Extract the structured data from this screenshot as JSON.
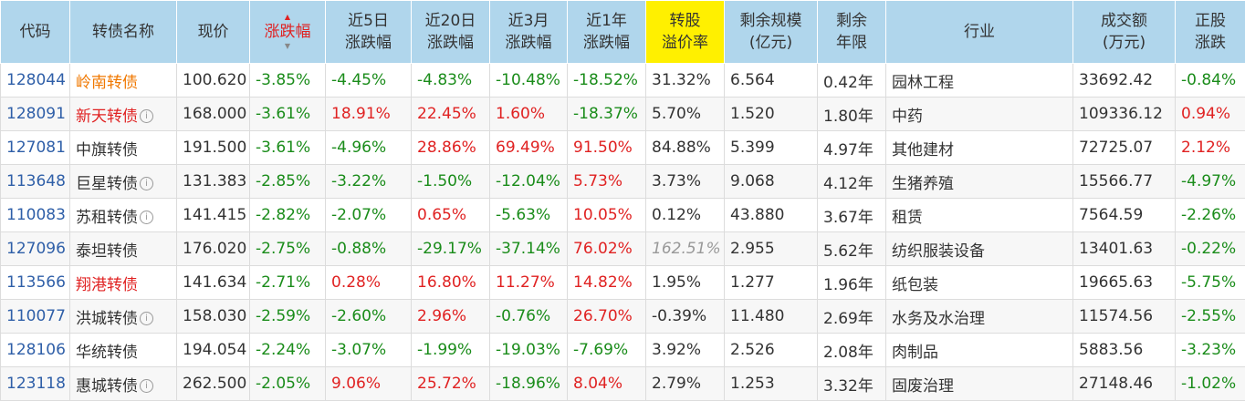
{
  "header": {
    "code": "代码",
    "name": "转债名称",
    "price": "现价",
    "change": "涨跌幅",
    "chg5d_1": "近5日",
    "chg5d_2": "涨跌幅",
    "chg20d_1": "近20日",
    "chg20d_2": "涨跌幅",
    "chg3m_1": "近3月",
    "chg3m_2": "涨跌幅",
    "chg1y_1": "近1年",
    "chg1y_2": "涨跌幅",
    "premium_1": "转股",
    "premium_2": "溢价率",
    "size_1": "剩余规模",
    "size_2": "(亿元)",
    "term_1": "剩余",
    "term_2": "年限",
    "industry": "行业",
    "volume_1": "成交额",
    "volume_2": "(万元)",
    "stock_1": "正股",
    "stock_2": "涨跌"
  },
  "colors": {
    "up": "#e02222",
    "down": "#1a8c1a",
    "header_bg": "#b0d6ec",
    "premium_header_bg": "#fff000",
    "code": "#2f5fa8"
  },
  "rows": [
    {
      "code": "128044",
      "name": "岭南转债",
      "price": "100.620",
      "chg": "-3.85%",
      "chg5": "-4.45%",
      "chg20": "-4.83%",
      "chg3m": "-10.48%",
      "chg1y": "-18.52%",
      "premium": "31.32%",
      "size": "6.564",
      "term": "0.42年",
      "industry": "园林工程",
      "volume": "33692.42",
      "stock": "-0.84%"
    },
    {
      "code": "128091",
      "name": "新天转债",
      "price": "168.000",
      "chg": "-3.61%",
      "chg5": "18.91%",
      "chg20": "22.45%",
      "chg3m": "1.60%",
      "chg1y": "-18.37%",
      "premium": "5.70%",
      "size": "1.520",
      "term": "1.80年",
      "industry": "中药",
      "volume": "109336.12",
      "stock": "0.94%"
    },
    {
      "code": "127081",
      "name": "中旗转债",
      "price": "191.500",
      "chg": "-3.61%",
      "chg5": "-4.96%",
      "chg20": "28.86%",
      "chg3m": "69.49%",
      "chg1y": "91.50%",
      "premium": "84.88%",
      "size": "5.399",
      "term": "4.97年",
      "industry": "其他建材",
      "volume": "72725.07",
      "stock": "2.12%"
    },
    {
      "code": "113648",
      "name": "巨星转债",
      "price": "131.383",
      "chg": "-2.85%",
      "chg5": "-3.22%",
      "chg20": "-1.50%",
      "chg3m": "-12.04%",
      "chg1y": "5.73%",
      "premium": "3.73%",
      "size": "9.068",
      "term": "4.12年",
      "industry": "生猪养殖",
      "volume": "15566.77",
      "stock": "-4.97%"
    },
    {
      "code": "110083",
      "name": "苏租转债",
      "price": "141.415",
      "chg": "-2.82%",
      "chg5": "-2.07%",
      "chg20": "0.65%",
      "chg3m": "-5.63%",
      "chg1y": "10.05%",
      "premium": "0.12%",
      "size": "43.880",
      "term": "3.67年",
      "industry": "租赁",
      "volume": "7564.59",
      "stock": "-2.26%"
    },
    {
      "code": "127096",
      "name": "泰坦转债",
      "price": "176.020",
      "chg": "-2.75%",
      "chg5": "-0.88%",
      "chg20": "-29.17%",
      "chg3m": "-37.14%",
      "chg1y": "76.02%",
      "premium": "162.51%",
      "size": "2.955",
      "term": "5.62年",
      "industry": "纺织服装设备",
      "volume": "13401.63",
      "stock": "-0.22%"
    },
    {
      "code": "113566",
      "name": "翔港转债",
      "price": "141.634",
      "chg": "-2.71%",
      "chg5": "0.28%",
      "chg20": "16.80%",
      "chg3m": "11.27%",
      "chg1y": "14.82%",
      "premium": "1.95%",
      "size": "1.277",
      "term": "1.96年",
      "industry": "纸包装",
      "volume": "19665.63",
      "stock": "-5.75%"
    },
    {
      "code": "110077",
      "name": "洪城转债",
      "price": "158.030",
      "chg": "-2.59%",
      "chg5": "-2.60%",
      "chg20": "2.96%",
      "chg3m": "-0.76%",
      "chg1y": "26.70%",
      "premium": "-0.39%",
      "size": "11.480",
      "term": "2.69年",
      "industry": "水务及水治理",
      "volume": "11574.56",
      "stock": "-2.55%"
    },
    {
      "code": "128106",
      "name": "华统转债",
      "price": "194.054",
      "chg": "-2.24%",
      "chg5": "-3.07%",
      "chg20": "-1.99%",
      "chg3m": "-19.03%",
      "chg1y": "-7.69%",
      "premium": "3.92%",
      "size": "2.526",
      "term": "2.08年",
      "industry": "肉制品",
      "volume": "5883.56",
      "stock": "-3.23%"
    },
    {
      "code": "123118",
      "name": "惠城转债",
      "price": "262.500",
      "chg": "-2.05%",
      "chg5": "9.06%",
      "chg20": "25.72%",
      "chg3m": "-18.96%",
      "chg1y": "8.04%",
      "premium": "2.79%",
      "size": "1.253",
      "term": "3.32年",
      "industry": "固废治理",
      "volume": "27148.46",
      "stock": "-1.02%"
    }
  ]
}
